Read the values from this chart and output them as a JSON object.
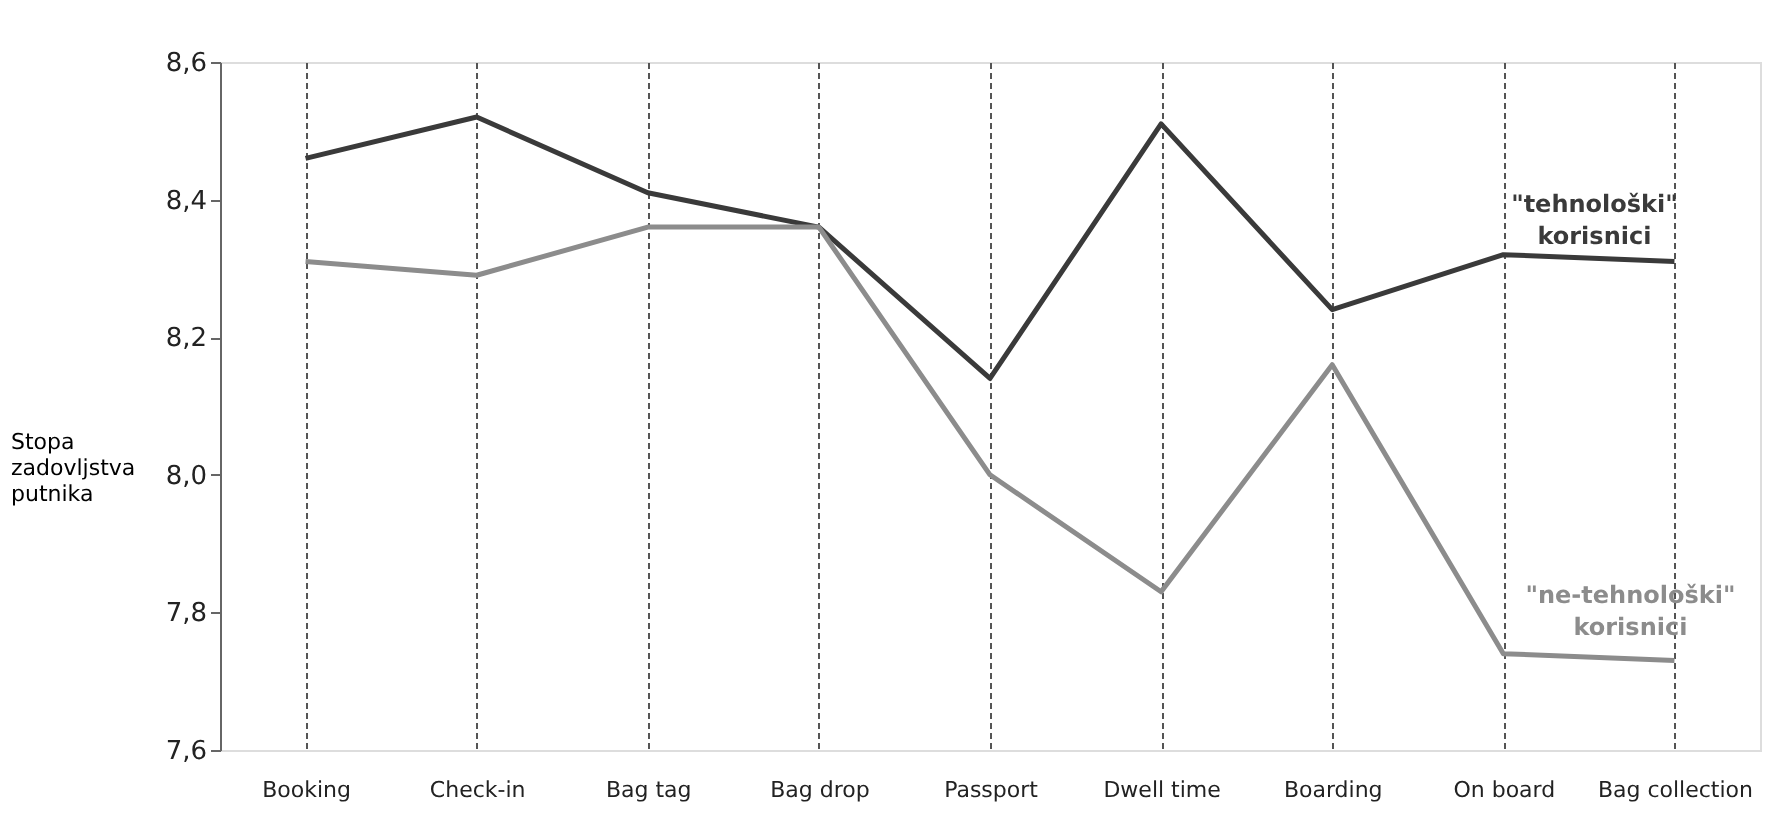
{
  "chart_data": {
    "type": "line",
    "ylabel": "Stopa zadovljstva putnika",
    "categories": [
      "Booking",
      "Check-in",
      "Bag tag",
      "Bag drop",
      "Passport",
      "Dwell time",
      "Boarding",
      "On board",
      "Bag collection"
    ],
    "series": [
      {
        "name": "\"tehnološki\" korisnici",
        "color": "#3a3a3a",
        "values": [
          8.46,
          8.52,
          8.41,
          8.36,
          8.14,
          8.51,
          8.24,
          8.32,
          8.31
        ]
      },
      {
        "name": "\"ne-tehnološki\" korisnici",
        "color": "#8c8c8c",
        "values": [
          8.31,
          8.29,
          8.36,
          8.36,
          8.0,
          7.83,
          8.16,
          7.74,
          7.73
        ]
      }
    ],
    "ylim": [
      7.6,
      8.6
    ],
    "yticks": [
      {
        "value": 7.6,
        "label": "7,6"
      },
      {
        "value": 7.8,
        "label": "7,8"
      },
      {
        "value": 8.0,
        "label": "8,0"
      },
      {
        "value": 8.2,
        "label": "8,2"
      },
      {
        "value": 8.4,
        "label": "8,4"
      },
      {
        "value": 8.6,
        "label": "8,6"
      }
    ],
    "grid": "x",
    "marker": "none",
    "line_style": "solid"
  }
}
